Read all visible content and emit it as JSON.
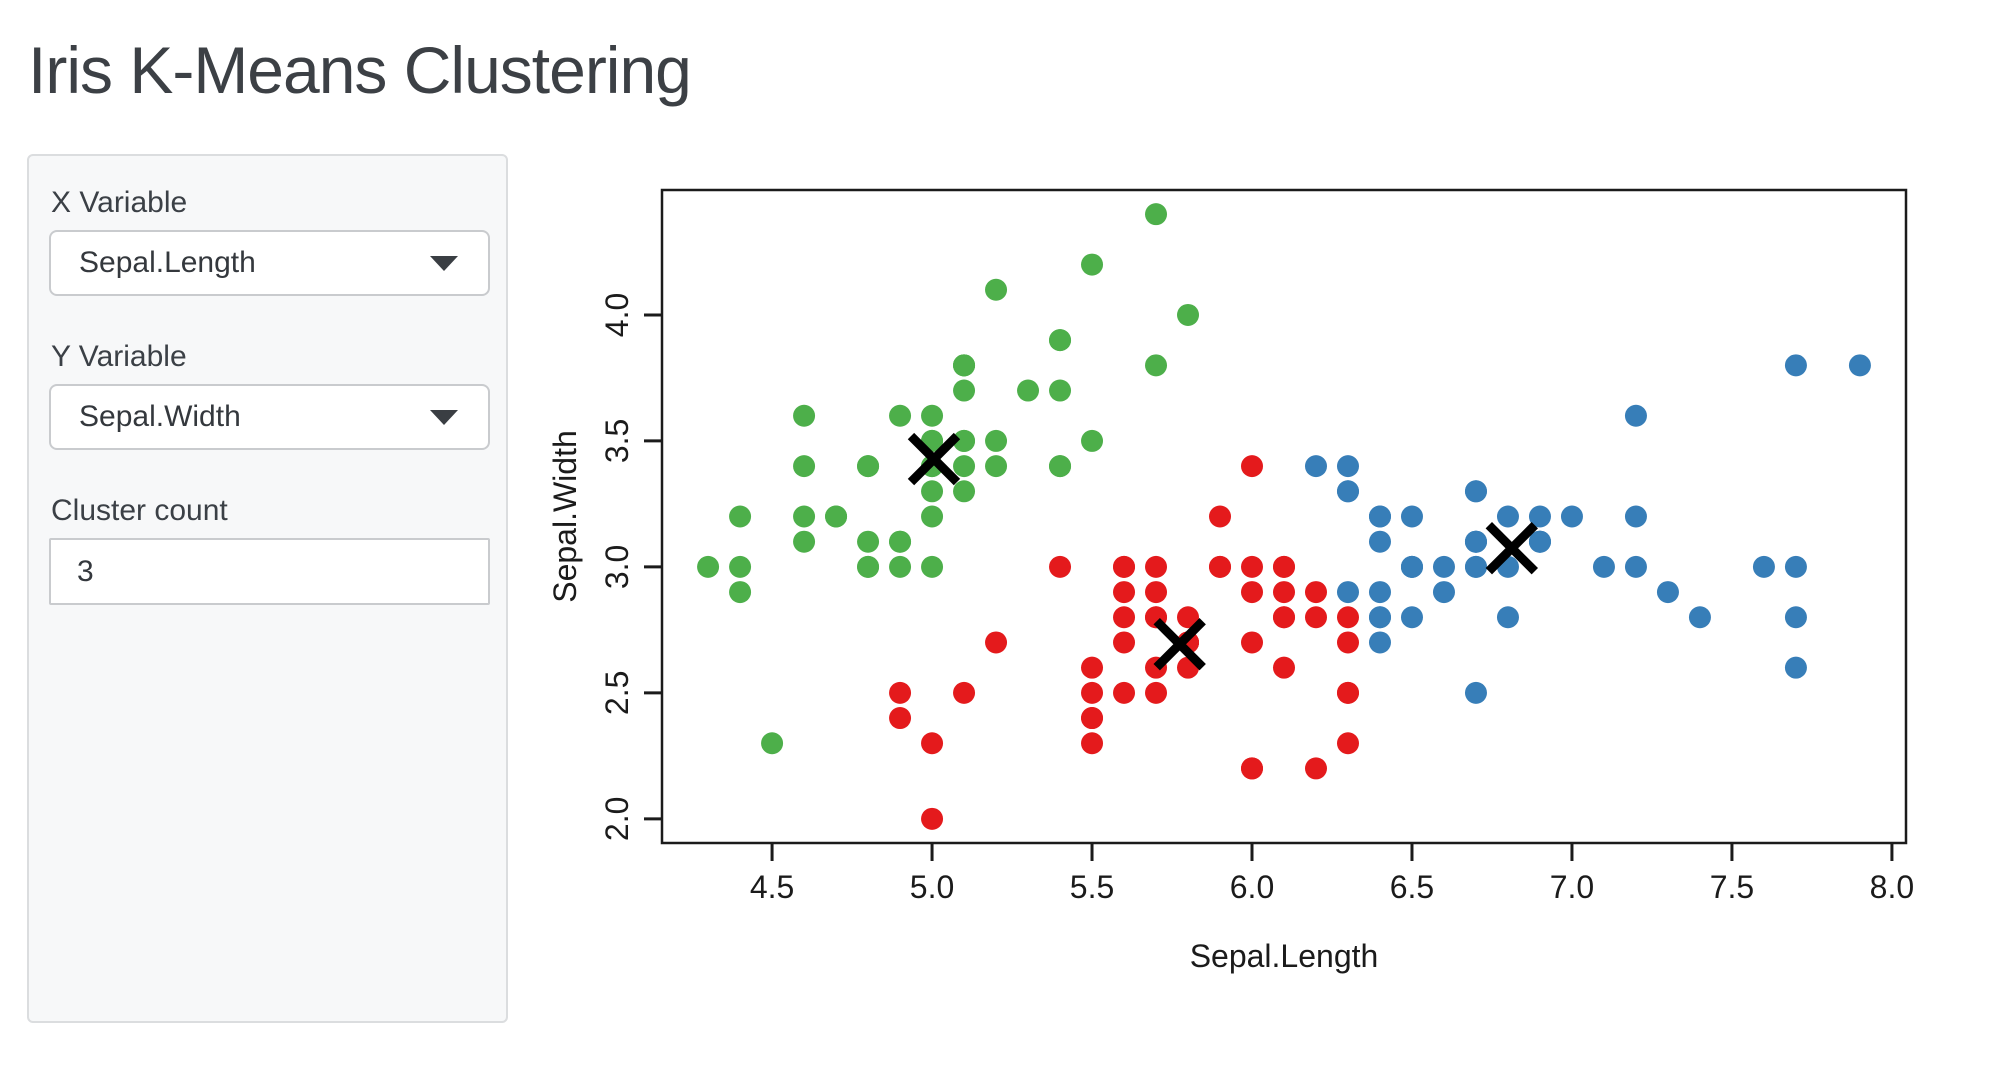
{
  "page": {
    "title": "Iris K-Means Clustering"
  },
  "sidebar": {
    "x_variable": {
      "label": "X Variable",
      "value": "Sepal.Length"
    },
    "y_variable": {
      "label": "Y Variable",
      "value": "Sepal.Width"
    },
    "cluster_count": {
      "label": "Cluster count",
      "value": "3"
    }
  },
  "colors": {
    "cluster_green": "#4daf4a",
    "cluster_red": "#e41a1c",
    "cluster_blue": "#377eb8",
    "axis": "#1b1b1b",
    "center_mark": "#000000",
    "sidebar_bg": "#f7f8f9"
  },
  "chart_data": {
    "type": "scatter",
    "title": "",
    "xlabel": "Sepal.Length",
    "ylabel": "Sepal.Width",
    "xlim": [
      4.156,
      8.044
    ],
    "ylim": [
      1.904,
      4.496
    ],
    "x_ticks": [
      4.5,
      5.0,
      5.5,
      6.0,
      6.5,
      7.0,
      7.5,
      8.0
    ],
    "y_ticks": [
      2.0,
      2.5,
      3.0,
      3.5,
      4.0
    ],
    "grid": false,
    "legend": "none",
    "cluster_colors": {
      "1": "#4daf4a",
      "2": "#e41a1c",
      "3": "#377eb8"
    },
    "points": [
      [
        5.1,
        3.5,
        1
      ],
      [
        4.9,
        3.0,
        1
      ],
      [
        4.7,
        3.2,
        1
      ],
      [
        4.6,
        3.1,
        1
      ],
      [
        5.0,
        3.6,
        1
      ],
      [
        5.4,
        3.9,
        1
      ],
      [
        4.6,
        3.4,
        1
      ],
      [
        5.0,
        3.4,
        1
      ],
      [
        4.4,
        2.9,
        1
      ],
      [
        4.9,
        3.1,
        1
      ],
      [
        5.4,
        3.7,
        1
      ],
      [
        4.8,
        3.4,
        1
      ],
      [
        4.8,
        3.0,
        1
      ],
      [
        4.3,
        3.0,
        1
      ],
      [
        5.8,
        4.0,
        1
      ],
      [
        5.7,
        4.4,
        1
      ],
      [
        5.4,
        3.9,
        1
      ],
      [
        5.1,
        3.5,
        1
      ],
      [
        5.7,
        3.8,
        1
      ],
      [
        5.1,
        3.8,
        1
      ],
      [
        5.4,
        3.4,
        1
      ],
      [
        5.1,
        3.7,
        1
      ],
      [
        4.6,
        3.6,
        1
      ],
      [
        5.1,
        3.3,
        1
      ],
      [
        4.8,
        3.4,
        1
      ],
      [
        5.0,
        3.0,
        1
      ],
      [
        5.0,
        3.4,
        1
      ],
      [
        5.2,
        3.5,
        1
      ],
      [
        5.2,
        3.4,
        1
      ],
      [
        4.7,
        3.2,
        1
      ],
      [
        4.8,
        3.1,
        1
      ],
      [
        5.4,
        3.4,
        1
      ],
      [
        5.2,
        4.1,
        1
      ],
      [
        5.5,
        4.2,
        1
      ],
      [
        4.9,
        3.1,
        1
      ],
      [
        5.0,
        3.2,
        1
      ],
      [
        5.5,
        3.5,
        1
      ],
      [
        4.9,
        3.6,
        1
      ],
      [
        4.4,
        3.0,
        1
      ],
      [
        5.1,
        3.4,
        1
      ],
      [
        5.0,
        3.5,
        1
      ],
      [
        4.5,
        2.3,
        1
      ],
      [
        4.4,
        3.2,
        1
      ],
      [
        5.0,
        3.5,
        1
      ],
      [
        5.1,
        3.8,
        1
      ],
      [
        4.8,
        3.0,
        1
      ],
      [
        5.1,
        3.8,
        1
      ],
      [
        4.6,
        3.2,
        1
      ],
      [
        5.3,
        3.7,
        1
      ],
      [
        5.0,
        3.3,
        1
      ],
      [
        7.0,
        3.2,
        3
      ],
      [
        6.4,
        3.2,
        3
      ],
      [
        6.9,
        3.1,
        3
      ],
      [
        5.5,
        2.3,
        2
      ],
      [
        6.5,
        2.8,
        3
      ],
      [
        5.7,
        2.8,
        2
      ],
      [
        6.3,
        3.3,
        3
      ],
      [
        4.9,
        2.4,
        2
      ],
      [
        6.6,
        2.9,
        3
      ],
      [
        5.2,
        2.7,
        2
      ],
      [
        5.0,
        2.0,
        2
      ],
      [
        5.9,
        3.0,
        2
      ],
      [
        6.0,
        2.2,
        2
      ],
      [
        6.1,
        2.9,
        2
      ],
      [
        5.6,
        2.9,
        2
      ],
      [
        6.7,
        3.1,
        3
      ],
      [
        5.6,
        3.0,
        2
      ],
      [
        5.8,
        2.7,
        2
      ],
      [
        6.2,
        2.2,
        2
      ],
      [
        5.6,
        2.5,
        2
      ],
      [
        5.9,
        3.2,
        2
      ],
      [
        6.1,
        2.8,
        2
      ],
      [
        6.3,
        2.5,
        2
      ],
      [
        6.1,
        2.8,
        2
      ],
      [
        6.4,
        2.9,
        3
      ],
      [
        6.6,
        3.0,
        3
      ],
      [
        6.8,
        2.8,
        3
      ],
      [
        6.7,
        3.0,
        3
      ],
      [
        6.0,
        2.9,
        2
      ],
      [
        5.7,
        2.6,
        2
      ],
      [
        5.5,
        2.4,
        2
      ],
      [
        5.5,
        2.4,
        2
      ],
      [
        5.8,
        2.7,
        2
      ],
      [
        6.0,
        2.7,
        2
      ],
      [
        5.4,
        3.0,
        2
      ],
      [
        6.0,
        3.4,
        2
      ],
      [
        6.7,
        3.1,
        3
      ],
      [
        6.3,
        2.3,
        2
      ],
      [
        5.6,
        3.0,
        2
      ],
      [
        5.5,
        2.5,
        2
      ],
      [
        5.5,
        2.6,
        2
      ],
      [
        6.1,
        3.0,
        2
      ],
      [
        5.8,
        2.6,
        2
      ],
      [
        5.0,
        2.3,
        2
      ],
      [
        5.6,
        2.7,
        2
      ],
      [
        5.7,
        3.0,
        2
      ],
      [
        5.7,
        2.9,
        2
      ],
      [
        6.2,
        2.9,
        2
      ],
      [
        5.1,
        2.5,
        2
      ],
      [
        5.7,
        2.8,
        2
      ],
      [
        6.3,
        3.3,
        3
      ],
      [
        5.8,
        2.7,
        2
      ],
      [
        7.1,
        3.0,
        3
      ],
      [
        6.3,
        2.9,
        3
      ],
      [
        6.5,
        3.0,
        3
      ],
      [
        7.6,
        3.0,
        3
      ],
      [
        4.9,
        2.5,
        2
      ],
      [
        7.3,
        2.9,
        3
      ],
      [
        6.7,
        2.5,
        3
      ],
      [
        7.2,
        3.6,
        3
      ],
      [
        6.5,
        3.2,
        3
      ],
      [
        6.4,
        2.7,
        3
      ],
      [
        6.8,
        3.0,
        3
      ],
      [
        5.7,
        2.5,
        2
      ],
      [
        5.8,
        2.8,
        2
      ],
      [
        6.4,
        3.2,
        3
      ],
      [
        6.5,
        3.0,
        3
      ],
      [
        7.7,
        3.8,
        3
      ],
      [
        7.7,
        2.6,
        3
      ],
      [
        6.0,
        2.2,
        2
      ],
      [
        6.9,
        3.2,
        3
      ],
      [
        5.6,
        2.8,
        2
      ],
      [
        7.7,
        2.8,
        3
      ],
      [
        6.3,
        2.7,
        2
      ],
      [
        6.7,
        3.3,
        3
      ],
      [
        7.2,
        3.2,
        3
      ],
      [
        6.2,
        2.8,
        2
      ],
      [
        6.1,
        3.0,
        2
      ],
      [
        6.4,
        2.8,
        3
      ],
      [
        7.2,
        3.0,
        3
      ],
      [
        7.4,
        2.8,
        3
      ],
      [
        7.9,
        3.8,
        3
      ],
      [
        6.4,
        2.8,
        3
      ],
      [
        6.3,
        2.8,
        2
      ],
      [
        6.1,
        2.6,
        2
      ],
      [
        7.7,
        3.0,
        3
      ],
      [
        6.3,
        3.4,
        3
      ],
      [
        6.4,
        3.1,
        3
      ],
      [
        6.0,
        3.0,
        2
      ],
      [
        6.9,
        3.1,
        3
      ],
      [
        6.7,
        3.1,
        3
      ],
      [
        6.9,
        3.1,
        3
      ],
      [
        5.8,
        2.7,
        2
      ],
      [
        6.8,
        3.2,
        3
      ],
      [
        6.7,
        3.3,
        3
      ],
      [
        6.7,
        3.0,
        3
      ],
      [
        6.3,
        2.5,
        2
      ],
      [
        6.5,
        3.0,
        3
      ],
      [
        6.2,
        3.4,
        3
      ],
      [
        5.9,
        3.0,
        2
      ]
    ],
    "centers": [
      [
        5.006,
        3.428
      ],
      [
        5.774,
        2.693
      ],
      [
        6.812,
        3.074
      ]
    ]
  }
}
